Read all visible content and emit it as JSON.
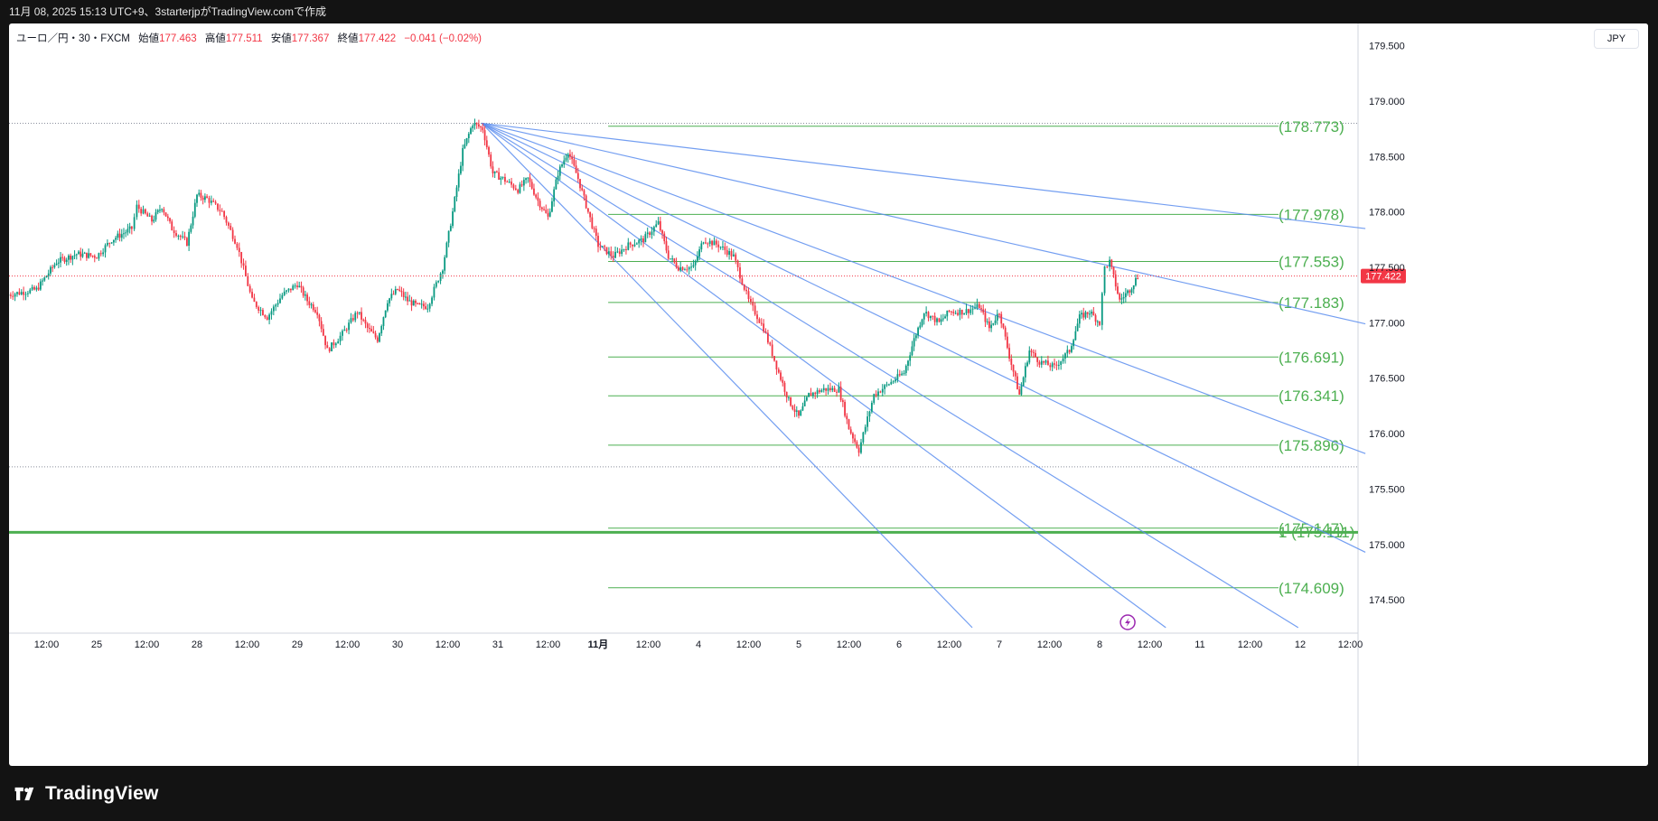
{
  "header": {
    "caption": "11月 08, 2025 15:13 UTC+9、3starterjpがTradingView.comで作成"
  },
  "legend": {
    "symbol": "ユーロ／円・30・FXCM",
    "open_label": "始値",
    "open": "177.463",
    "high_label": "高値",
    "high": "177.511",
    "low_label": "安値",
    "low": "177.367",
    "close_label": "終値",
    "close": "177.422",
    "change": "−0.041 (−0.02%)"
  },
  "currency_button": "JPY",
  "footer": {
    "brand": "TradingView"
  },
  "colors": {
    "up": "#089981",
    "down": "#f23645",
    "fib": "#4caf50",
    "fan": "#5b8def",
    "price_line": "#f23645"
  },
  "chart_data": {
    "type": "candlestick",
    "symbol": "EUR/JPY 30m",
    "ylim": [
      174.2,
      179.7
    ],
    "y_ticks": [
      "179.500",
      "179.000",
      "178.500",
      "178.000",
      "177.500",
      "177.000",
      "176.500",
      "176.000",
      "175.500",
      "175.000",
      "174.500"
    ],
    "x_ticks": [
      {
        "label": "12:00",
        "d": -0.5
      },
      {
        "label": "25",
        "d": 0
      },
      {
        "label": "12:00",
        "d": 0.5
      },
      {
        "label": "28",
        "d": 1
      },
      {
        "label": "12:00",
        "d": 1.5
      },
      {
        "label": "29",
        "d": 2
      },
      {
        "label": "12:00",
        "d": 2.5
      },
      {
        "label": "30",
        "d": 3
      },
      {
        "label": "12:00",
        "d": 3.5
      },
      {
        "label": "31",
        "d": 4
      },
      {
        "label": "12:00",
        "d": 4.5
      },
      {
        "label": "11月",
        "d": 5,
        "bold": true
      },
      {
        "label": "12:00",
        "d": 5.5
      },
      {
        "label": "4",
        "d": 6
      },
      {
        "label": "12:00",
        "d": 6.5
      },
      {
        "label": "5",
        "d": 7
      },
      {
        "label": "12:00",
        "d": 7.5
      },
      {
        "label": "6",
        "d": 8
      },
      {
        "label": "12:00",
        "d": 8.5
      },
      {
        "label": "7",
        "d": 9
      },
      {
        "label": "12:00",
        "d": 9.5
      },
      {
        "label": "8",
        "d": 10
      },
      {
        "label": "12:00",
        "d": 10.5
      },
      {
        "label": "11",
        "d": 11
      },
      {
        "label": "12:00",
        "d": 11.5
      },
      {
        "label": "12",
        "d": 12
      },
      {
        "label": "12:00",
        "d": 12.5
      }
    ],
    "price_path": [
      [
        -0.9,
        177.25
      ],
      [
        -0.6,
        177.3
      ],
      [
        -0.4,
        177.55
      ],
      [
        -0.2,
        177.62
      ],
      [
        0.0,
        177.6
      ],
      [
        0.15,
        177.75
      ],
      [
        0.35,
        177.85
      ],
      [
        0.4,
        178.05
      ],
      [
        0.55,
        177.92
      ],
      [
        0.65,
        178.05
      ],
      [
        0.75,
        177.85
      ],
      [
        0.9,
        177.72
      ],
      [
        1.0,
        178.15
      ],
      [
        1.1,
        178.12
      ],
      [
        1.25,
        178.0
      ],
      [
        1.4,
        177.7
      ],
      [
        1.55,
        177.2
      ],
      [
        1.7,
        177.05
      ],
      [
        1.85,
        177.25
      ],
      [
        2.0,
        177.35
      ],
      [
        2.1,
        177.2
      ],
      [
        2.2,
        177.1
      ],
      [
        2.3,
        176.75
      ],
      [
        2.45,
        176.9
      ],
      [
        2.6,
        177.1
      ],
      [
        2.7,
        176.95
      ],
      [
        2.8,
        176.85
      ],
      [
        2.9,
        177.2
      ],
      [
        3.0,
        177.3
      ],
      [
        3.1,
        177.2
      ],
      [
        3.2,
        177.15
      ],
      [
        3.3,
        177.15
      ],
      [
        3.45,
        177.5
      ],
      [
        3.55,
        178.0
      ],
      [
        3.65,
        178.55
      ],
      [
        3.75,
        178.8
      ],
      [
        3.85,
        178.75
      ],
      [
        3.95,
        178.35
      ],
      [
        4.05,
        178.3
      ],
      [
        4.2,
        178.2
      ],
      [
        4.3,
        178.3
      ],
      [
        4.4,
        178.1
      ],
      [
        4.5,
        177.95
      ],
      [
        4.6,
        178.35
      ],
      [
        4.7,
        178.55
      ],
      [
        4.8,
        178.3
      ],
      [
        4.9,
        178.0
      ],
      [
        5.0,
        177.7
      ],
      [
        5.15,
        177.6
      ],
      [
        5.3,
        177.7
      ],
      [
        5.45,
        177.75
      ],
      [
        5.6,
        177.9
      ],
      [
        5.7,
        177.6
      ],
      [
        5.8,
        177.5
      ],
      [
        5.95,
        177.5
      ],
      [
        6.05,
        177.75
      ],
      [
        6.2,
        177.7
      ],
      [
        6.35,
        177.6
      ],
      [
        6.5,
        177.2
      ],
      [
        6.65,
        176.95
      ],
      [
        6.8,
        176.55
      ],
      [
        6.9,
        176.3
      ],
      [
        7.0,
        176.15
      ],
      [
        7.1,
        176.35
      ],
      [
        7.25,
        176.4
      ],
      [
        7.4,
        176.4
      ],
      [
        7.5,
        176.05
      ],
      [
        7.6,
        175.85
      ],
      [
        7.75,
        176.35
      ],
      [
        7.9,
        176.45
      ],
      [
        8.05,
        176.55
      ],
      [
        8.15,
        176.85
      ],
      [
        8.25,
        177.1
      ],
      [
        8.4,
        177.0
      ],
      [
        8.5,
        177.1
      ],
      [
        8.65,
        177.1
      ],
      [
        8.8,
        177.15
      ],
      [
        8.9,
        176.95
      ],
      [
        9.0,
        177.1
      ],
      [
        9.1,
        176.7
      ],
      [
        9.2,
        176.35
      ],
      [
        9.3,
        176.75
      ],
      [
        9.4,
        176.65
      ],
      [
        9.55,
        176.6
      ],
      [
        9.7,
        176.75
      ],
      [
        9.8,
        177.05
      ],
      [
        9.9,
        177.1
      ],
      [
        10.0,
        177.0
      ],
      [
        10.05,
        177.5
      ],
      [
        10.1,
        177.55
      ],
      [
        10.2,
        177.2
      ],
      [
        10.3,
        177.3
      ],
      [
        10.38,
        177.42
      ]
    ],
    "fibonacci": {
      "levels": [
        {
          "ratio": "",
          "value": "178.773",
          "price": 178.773
        },
        {
          "ratio": "",
          "value": "177.978",
          "price": 177.978
        },
        {
          "ratio": "",
          "value": "177.553",
          "price": 177.553
        },
        {
          "ratio": "",
          "value": "177.183",
          "price": 177.183
        },
        {
          "ratio": "",
          "value": "176.691",
          "price": 176.691
        },
        {
          "ratio": "",
          "value": "176.341",
          "price": 176.341
        },
        {
          "ratio": "",
          "value": "175.896",
          "price": 175.896
        },
        {
          "ratio": "",
          "value": "175.147",
          "price": 175.147
        },
        {
          "ratio": "1",
          "value": "175.111",
          "price": 175.111
        },
        {
          "ratio": "",
          "value": "174.609",
          "price": 174.609
        }
      ],
      "x_start": 5.1
    },
    "fan": {
      "origin": [
        3.84,
        178.8
      ],
      "ends": [
        [
          12.65,
          177.85
        ],
        [
          12.65,
          176.99
        ],
        [
          12.65,
          175.82
        ],
        [
          12.65,
          174.93
        ],
        [
          11.98,
          174.25
        ],
        [
          10.66,
          174.25
        ],
        [
          8.73,
          174.25
        ]
      ]
    },
    "horizontal_lines": [
      {
        "price": 178.8,
        "style": "dotted",
        "color": "#8a8f9c"
      },
      {
        "price": 175.7,
        "style": "dotted",
        "color": "#8a8f9c"
      },
      {
        "price": 175.11,
        "style": "solid-thick",
        "color": "#4caf50"
      }
    ],
    "current_price": {
      "value": "177.422",
      "price": 177.422
    }
  }
}
